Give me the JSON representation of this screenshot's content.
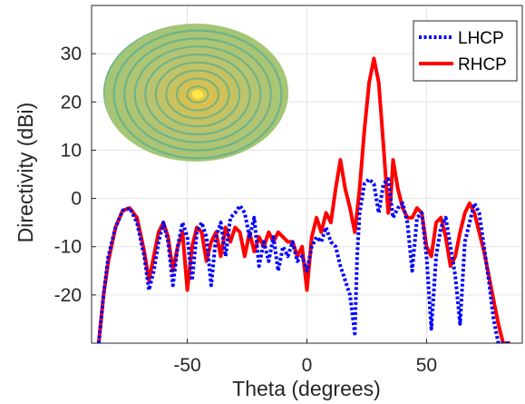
{
  "chart_data": {
    "type": "line",
    "title": "",
    "xlabel": "Theta (degrees)",
    "ylabel": "Directivity (dBi)",
    "xlim": [
      -90,
      90
    ],
    "ylim": [
      -30,
      40
    ],
    "xticks": [
      -50,
      0,
      50
    ],
    "yticks": [
      -20,
      -10,
      0,
      10,
      20,
      30
    ],
    "grid": true,
    "legend_position": "top-right",
    "inset_image": "concentric ring reflectarray aperture",
    "series": [
      {
        "name": "LHCP",
        "color": "#0000ff",
        "style": "dotted",
        "x": [
          -87,
          -85,
          -83,
          -80,
          -77,
          -74,
          -71,
          -68,
          -66,
          -64,
          -62,
          -60,
          -58,
          -56,
          -54,
          -52,
          -50,
          -48,
          -46,
          -44,
          -42,
          -40,
          -38,
          -36,
          -34,
          -32,
          -30,
          -28,
          -26,
          -24,
          -22,
          -20,
          -18,
          -16,
          -14,
          -12,
          -10,
          -8,
          -6,
          -4,
          -2,
          0,
          2,
          4,
          6,
          8,
          10,
          12,
          14,
          16,
          18,
          20,
          21,
          22,
          24,
          26,
          28,
          30,
          32,
          34,
          36,
          38,
          40,
          42,
          44,
          46,
          48,
          50,
          52,
          54,
          56,
          58,
          60,
          62,
          64,
          66,
          68,
          70,
          72,
          74,
          76,
          78,
          80,
          82,
          85
        ],
        "y": [
          -30,
          -20,
          -12,
          -6,
          -2.5,
          -2,
          -5,
          -12,
          -19,
          -15,
          -9,
          -5,
          -9,
          -18,
          -10,
          -5,
          -8,
          -17,
          -7,
          -5,
          -8,
          -18,
          -8,
          -5,
          -12,
          -4,
          -3,
          -1.5,
          -3,
          -8,
          -4,
          -14,
          -9,
          -13,
          -8,
          -15,
          -10,
          -12,
          -9,
          -13,
          -12,
          -15,
          -10,
          -8,
          -9,
          -6,
          -9,
          -10,
          -14,
          -17,
          -20,
          -28,
          -12,
          -3,
          3,
          4,
          3,
          -3,
          3,
          4,
          -4,
          -2,
          -1,
          -5,
          -15,
          -4,
          -3,
          -12,
          -27,
          -12,
          -6,
          -4,
          -10,
          -16,
          -26,
          -9,
          -5,
          -1,
          -3,
          -10,
          -17,
          -25,
          -30,
          -30,
          -30
        ]
      },
      {
        "name": "RHCP",
        "color": "#ff0000",
        "style": "solid",
        "x": [
          -87,
          -85,
          -83,
          -80,
          -77,
          -74,
          -71,
          -68,
          -66,
          -64,
          -62,
          -60,
          -58,
          -56,
          -54,
          -52,
          -50,
          -48,
          -46,
          -44,
          -42,
          -40,
          -38,
          -36,
          -34,
          -32,
          -30,
          -28,
          -26,
          -24,
          -22,
          -20,
          -18,
          -16,
          -14,
          -12,
          -10,
          -8,
          -6,
          -4,
          -2,
          0,
          2,
          4,
          6,
          8,
          10,
          12,
          14,
          16,
          18,
          20,
          22,
          24,
          26,
          28,
          30,
          32,
          34,
          35,
          36,
          38,
          40,
          42,
          44,
          46,
          48,
          50,
          52,
          54,
          56,
          58,
          60,
          62,
          64,
          66,
          68,
          70,
          72,
          74,
          76,
          78,
          80,
          82,
          85
        ],
        "y": [
          -30,
          -20,
          -13,
          -6,
          -2.5,
          -2,
          -4,
          -11,
          -17,
          -12,
          -7,
          -5,
          -8,
          -15,
          -10,
          -7,
          -19,
          -10,
          -6,
          -7,
          -13,
          -9,
          -7,
          -12,
          -6,
          -9,
          -6,
          -7,
          -12,
          -7,
          -11,
          -8,
          -10,
          -7,
          -9,
          -7,
          -8,
          -9,
          -9,
          -12,
          -10,
          -19,
          -8,
          -4,
          -7,
          -3,
          -5,
          2,
          8,
          2,
          -2,
          -7,
          2,
          14,
          24,
          29,
          24,
          11,
          -3,
          0,
          8,
          2,
          -2,
          -4,
          -4,
          -2,
          -3,
          -10,
          -12,
          -5,
          -4,
          -8,
          -14,
          -12,
          -7,
          -3,
          -1,
          -3,
          -7,
          -11,
          -16,
          -21,
          -26,
          -30,
          -30
        ]
      }
    ]
  }
}
